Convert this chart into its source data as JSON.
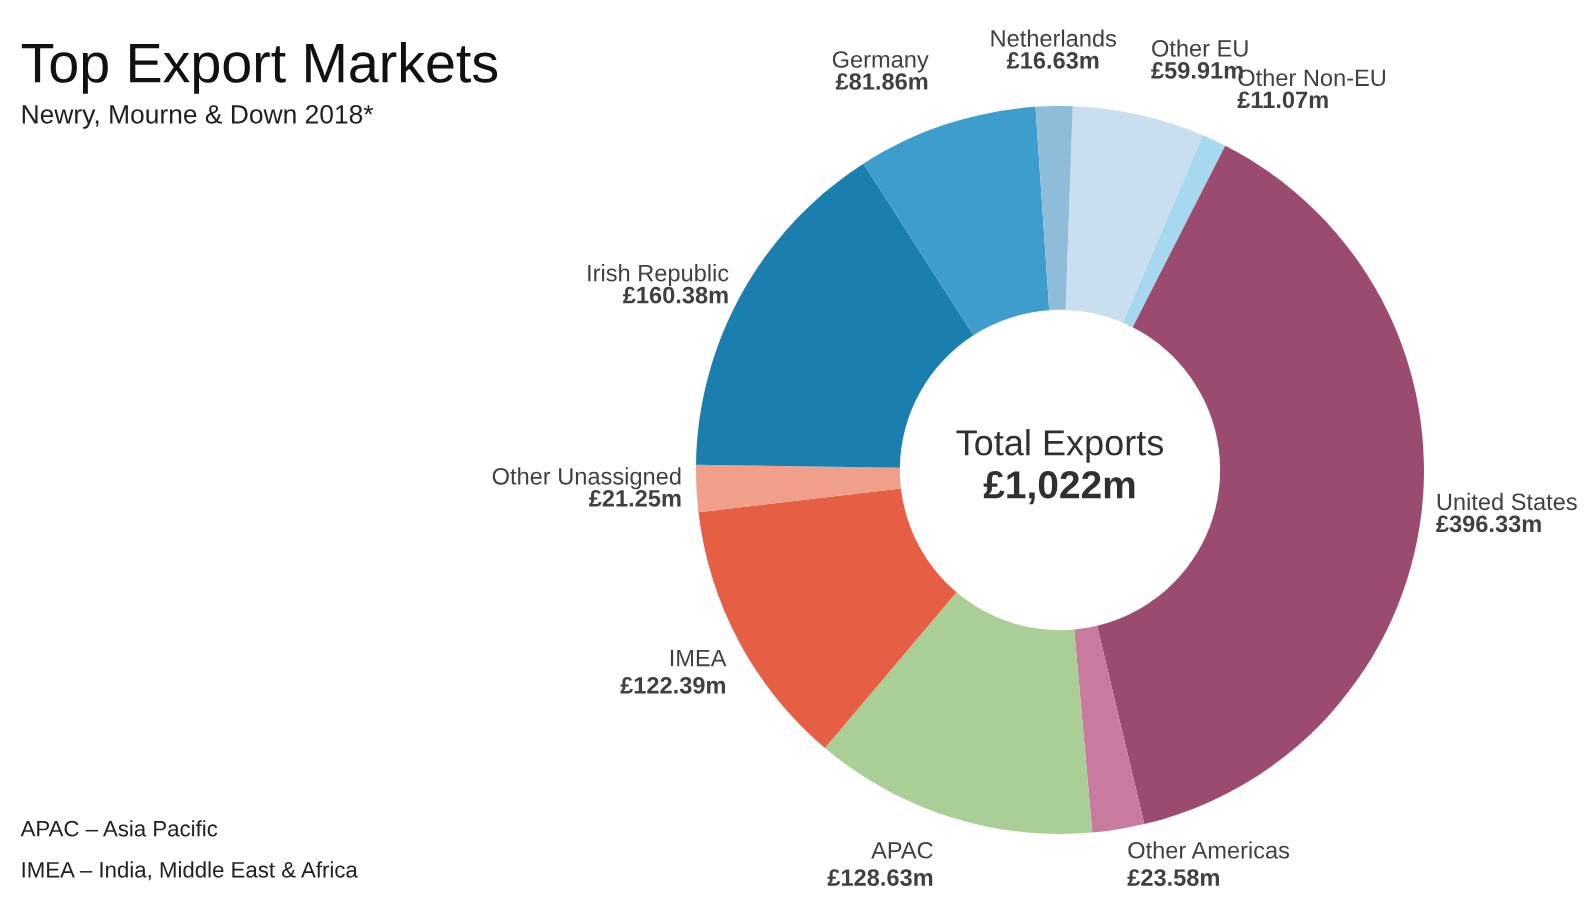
{
  "chart_data": {
    "type": "donut",
    "title": "Top Export Markets",
    "subtitle": "Newry, Mourne & Down 2018*",
    "categories": [
      "Other EU",
      "Other Non-EU",
      "United States",
      "Other Americas",
      "APAC",
      "IMEA",
      "Other Unassigned",
      "Irish Republic",
      "Germany",
      "Netherlands"
    ],
    "values": [
      59.91,
      11.07,
      396.33,
      23.58,
      128.63,
      122.39,
      21.25,
      160.38,
      81.86,
      16.63
    ],
    "value_labels": [
      "£59.91m",
      "£11.07m",
      "£396.33m",
      "£23.58m",
      "£128.63m",
      "£122.39m",
      "£21.25m",
      "£160.38m",
      "£81.86m",
      "£16.63m"
    ],
    "colors": [
      "#c9dff0",
      "#a6d8f0",
      "#9b4a70",
      "#c97b9f",
      "#a9cf96",
      "#e65f44",
      "#f0a08a",
      "#1a7fae",
      "#3d9dcc",
      "#8fbdd9"
    ],
    "annotations": [
      "Total Exports",
      "£1,022m",
      "APAC – Asia Pacific",
      "IMEA – India, Middle East & Africa"
    ],
    "legend": false
  }
}
